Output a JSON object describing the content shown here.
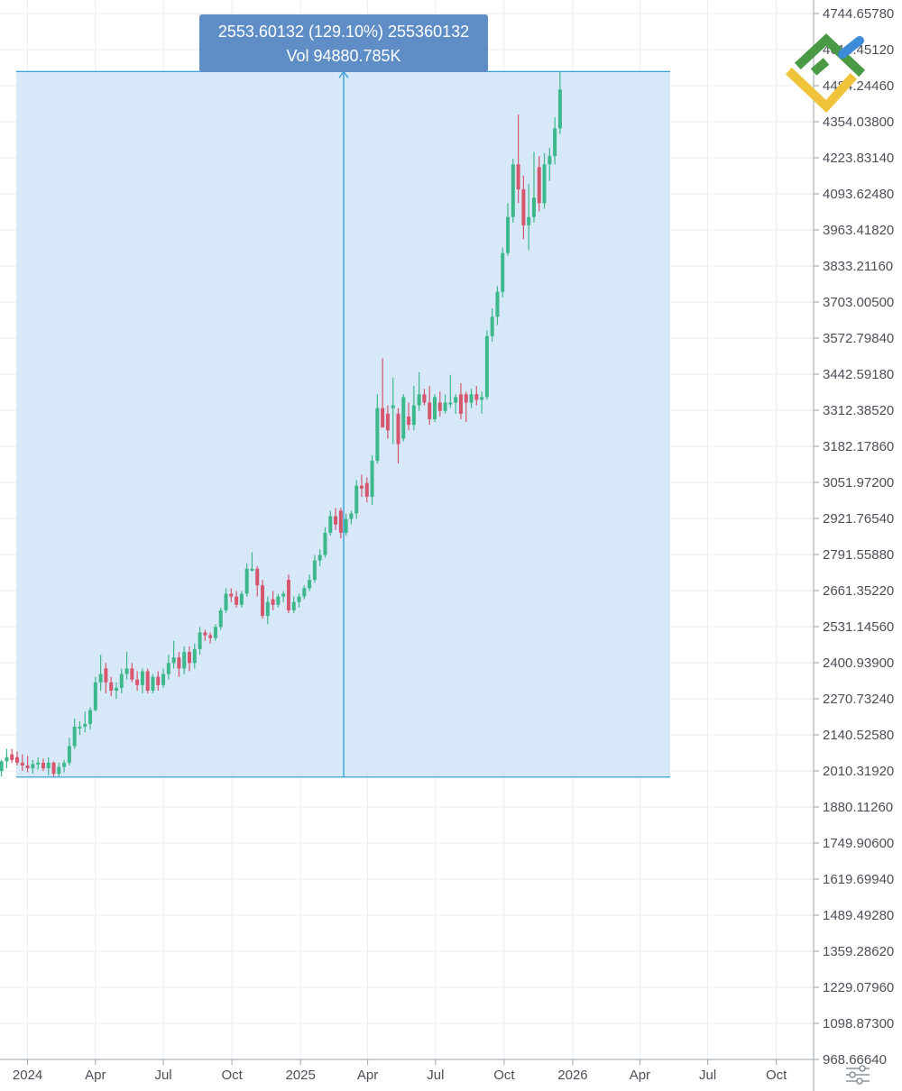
{
  "chart_data": {
    "type": "candlestick",
    "y_axis": {
      "ticks": [
        "4744.65780",
        "4615.45120",
        "4484.24460",
        "4354.03800",
        "4223.83140",
        "4093.62480",
        "3963.41820",
        "3833.21160",
        "3703.00500",
        "3572.79840",
        "3442.59180",
        "3312.38520",
        "3182.17860",
        "3051.97200",
        "2921.76540",
        "2791.55880",
        "2661.35220",
        "2531.14560",
        "2400.93900",
        "2270.73240",
        "2140.52580",
        "2010.31920",
        "1880.11260",
        "1749.90600",
        "1619.69940",
        "1489.49280",
        "1359.28620",
        "1229.07960",
        "1098.87300",
        "968.66640"
      ],
      "range": [
        968.6664,
        4744.6578
      ],
      "side": "right"
    },
    "x_axis": {
      "ticks": [
        "2024",
        "Apr",
        "Jul",
        "Oct",
        "2025",
        "Apr",
        "Jul",
        "Oct",
        "2026",
        "Apr",
        "Jul",
        "Oct"
      ],
      "range": [
        "2023-11-25",
        "2026-11-20"
      ]
    },
    "measure": {
      "label_line1": "2553.60132 (129.10%) 255360132",
      "label_line2": "Vol 94880.785K",
      "start_date": "2024-01-01",
      "end_date": "2025-11-10",
      "low": 1988,
      "high": 4535,
      "fill": "#d3e6f7",
      "stroke": "#3aa0d8"
    },
    "colors": {
      "up": "#3cb88b",
      "down": "#d5566d",
      "grid": "#e8eef3",
      "axis": "#9aa3ad",
      "tooltip": "#5f8ec6"
    },
    "series": [
      {
        "date": "2023-11-27",
        "open": 2010,
        "high": 2050,
        "low": 1990,
        "close": 2045
      },
      {
        "date": "2023-12-04",
        "open": 2045,
        "high": 2090,
        "low": 2020,
        "close": 2060
      },
      {
        "date": "2023-12-11",
        "open": 2070,
        "high": 2090,
        "low": 2040,
        "close": 2050
      },
      {
        "date": "2023-12-18",
        "open": 2060,
        "high": 2080,
        "low": 2030,
        "close": 2040
      },
      {
        "date": "2023-12-25",
        "open": 2040,
        "high": 2070,
        "low": 2010,
        "close": 2030
      },
      {
        "date": "2024-01-01",
        "open": 2030,
        "high": 2065,
        "low": 2005,
        "close": 2020
      },
      {
        "date": "2024-01-08",
        "open": 2020,
        "high": 2050,
        "low": 2000,
        "close": 2035
      },
      {
        "date": "2024-01-15",
        "open": 2035,
        "high": 2060,
        "low": 2015,
        "close": 2040
      },
      {
        "date": "2024-01-22",
        "open": 2040,
        "high": 2055,
        "low": 2010,
        "close": 2020
      },
      {
        "date": "2024-01-29",
        "open": 2020,
        "high": 2060,
        "low": 1995,
        "close": 2040
      },
      {
        "date": "2024-02-05",
        "open": 2040,
        "high": 2045,
        "low": 1990,
        "close": 2000
      },
      {
        "date": "2024-02-12",
        "open": 2000,
        "high": 2040,
        "low": 1990,
        "close": 2025
      },
      {
        "date": "2024-02-19",
        "open": 2025,
        "high": 2050,
        "low": 2005,
        "close": 2040
      },
      {
        "date": "2024-02-26",
        "open": 2040,
        "high": 2130,
        "low": 2030,
        "close": 2100
      },
      {
        "date": "2024-03-04",
        "open": 2100,
        "high": 2200,
        "low": 2090,
        "close": 2170
      },
      {
        "date": "2024-03-11",
        "open": 2170,
        "high": 2190,
        "low": 2140,
        "close": 2170
      },
      {
        "date": "2024-03-18",
        "open": 2170,
        "high": 2225,
        "low": 2150,
        "close": 2180
      },
      {
        "date": "2024-03-25",
        "open": 2180,
        "high": 2240,
        "low": 2160,
        "close": 2230
      },
      {
        "date": "2024-04-01",
        "open": 2230,
        "high": 2350,
        "low": 2225,
        "close": 2330
      },
      {
        "date": "2024-04-08",
        "open": 2330,
        "high": 2430,
        "low": 2300,
        "close": 2360
      },
      {
        "date": "2024-04-15",
        "open": 2380,
        "high": 2400,
        "low": 2290,
        "close": 2330
      },
      {
        "date": "2024-04-22",
        "open": 2330,
        "high": 2350,
        "low": 2280,
        "close": 2300
      },
      {
        "date": "2024-04-29",
        "open": 2300,
        "high": 2330,
        "low": 2270,
        "close": 2310
      },
      {
        "date": "2024-05-06",
        "open": 2310,
        "high": 2380,
        "low": 2290,
        "close": 2360
      },
      {
        "date": "2024-05-13",
        "open": 2360,
        "high": 2440,
        "low": 2340,
        "close": 2380
      },
      {
        "date": "2024-05-20",
        "open": 2380,
        "high": 2400,
        "low": 2330,
        "close": 2340
      },
      {
        "date": "2024-05-27",
        "open": 2340,
        "high": 2370,
        "low": 2300,
        "close": 2320
      },
      {
        "date": "2024-06-03",
        "open": 2320,
        "high": 2380,
        "low": 2290,
        "close": 2370
      },
      {
        "date": "2024-06-10",
        "open": 2370,
        "high": 2380,
        "low": 2290,
        "close": 2300
      },
      {
        "date": "2024-06-17",
        "open": 2300,
        "high": 2360,
        "low": 2290,
        "close": 2350
      },
      {
        "date": "2024-06-24",
        "open": 2350,
        "high": 2370,
        "low": 2300,
        "close": 2320
      },
      {
        "date": "2024-07-01",
        "open": 2320,
        "high": 2380,
        "low": 2310,
        "close": 2360
      },
      {
        "date": "2024-07-08",
        "open": 2360,
        "high": 2430,
        "low": 2340,
        "close": 2400
      },
      {
        "date": "2024-07-15",
        "open": 2400,
        "high": 2480,
        "low": 2380,
        "close": 2420
      },
      {
        "date": "2024-07-22",
        "open": 2420,
        "high": 2440,
        "low": 2350,
        "close": 2380
      },
      {
        "date": "2024-07-29",
        "open": 2380,
        "high": 2460,
        "low": 2360,
        "close": 2440
      },
      {
        "date": "2024-08-05",
        "open": 2440,
        "high": 2460,
        "low": 2370,
        "close": 2400
      },
      {
        "date": "2024-08-12",
        "open": 2400,
        "high": 2470,
        "low": 2380,
        "close": 2450
      },
      {
        "date": "2024-08-19",
        "open": 2450,
        "high": 2530,
        "low": 2430,
        "close": 2510
      },
      {
        "date": "2024-08-26",
        "open": 2510,
        "high": 2520,
        "low": 2480,
        "close": 2500
      },
      {
        "date": "2024-09-02",
        "open": 2500,
        "high": 2510,
        "low": 2470,
        "close": 2490
      },
      {
        "date": "2024-09-09",
        "open": 2490,
        "high": 2540,
        "low": 2480,
        "close": 2530
      },
      {
        "date": "2024-09-16",
        "open": 2530,
        "high": 2600,
        "low": 2520,
        "close": 2590
      },
      {
        "date": "2024-09-23",
        "open": 2590,
        "high": 2670,
        "low": 2580,
        "close": 2650
      },
      {
        "date": "2024-09-30",
        "open": 2650,
        "high": 2670,
        "low": 2620,
        "close": 2640
      },
      {
        "date": "2024-10-07",
        "open": 2640,
        "high": 2660,
        "low": 2600,
        "close": 2610
      },
      {
        "date": "2024-10-14",
        "open": 2610,
        "high": 2660,
        "low": 2600,
        "close": 2650
      },
      {
        "date": "2024-10-21",
        "open": 2650,
        "high": 2760,
        "low": 2640,
        "close": 2740
      },
      {
        "date": "2024-10-28",
        "open": 2740,
        "high": 2800,
        "low": 2730,
        "close": 2740
      },
      {
        "date": "2024-11-04",
        "open": 2740,
        "high": 2750,
        "low": 2640,
        "close": 2680
      },
      {
        "date": "2024-11-11",
        "open": 2680,
        "high": 2700,
        "low": 2560,
        "close": 2570
      },
      {
        "date": "2024-11-18",
        "open": 2570,
        "high": 2640,
        "low": 2540,
        "close": 2620
      },
      {
        "date": "2024-11-25",
        "open": 2630,
        "high": 2660,
        "low": 2590,
        "close": 2610
      },
      {
        "date": "2024-12-02",
        "open": 2610,
        "high": 2650,
        "low": 2600,
        "close": 2640
      },
      {
        "date": "2024-12-09",
        "open": 2640,
        "high": 2660,
        "low": 2620,
        "close": 2650
      },
      {
        "date": "2024-12-16",
        "open": 2700,
        "high": 2720,
        "low": 2580,
        "close": 2590
      },
      {
        "date": "2024-12-23",
        "open": 2590,
        "high": 2640,
        "low": 2580,
        "close": 2620
      },
      {
        "date": "2024-12-30",
        "open": 2620,
        "high": 2650,
        "low": 2600,
        "close": 2640
      },
      {
        "date": "2025-01-06",
        "open": 2640,
        "high": 2680,
        "low": 2630,
        "close": 2670
      },
      {
        "date": "2025-01-13",
        "open": 2670,
        "high": 2720,
        "low": 2660,
        "close": 2700
      },
      {
        "date": "2025-01-20",
        "open": 2700,
        "high": 2790,
        "low": 2690,
        "close": 2770
      },
      {
        "date": "2025-01-27",
        "open": 2770,
        "high": 2810,
        "low": 2750,
        "close": 2790
      },
      {
        "date": "2025-02-03",
        "open": 2790,
        "high": 2890,
        "low": 2780,
        "close": 2870
      },
      {
        "date": "2025-02-10",
        "open": 2870,
        "high": 2950,
        "low": 2860,
        "close": 2930
      },
      {
        "date": "2025-02-17",
        "open": 2930,
        "high": 2960,
        "low": 2880,
        "close": 2900
      },
      {
        "date": "2025-02-24",
        "open": 2950,
        "high": 2960,
        "low": 2850,
        "close": 2870
      },
      {
        "date": "2025-03-03",
        "open": 2870,
        "high": 2940,
        "low": 2860,
        "close": 2920
      },
      {
        "date": "2025-03-10",
        "open": 2920,
        "high": 2950,
        "low": 2900,
        "close": 2940
      },
      {
        "date": "2025-03-17",
        "open": 2940,
        "high": 3060,
        "low": 2920,
        "close": 3040
      },
      {
        "date": "2025-03-24",
        "open": 3040,
        "high": 3080,
        "low": 3000,
        "close": 3030
      },
      {
        "date": "2025-03-31",
        "open": 3050,
        "high": 3070,
        "low": 2980,
        "close": 3000
      },
      {
        "date": "2025-04-07",
        "open": 3000,
        "high": 3150,
        "low": 2970,
        "close": 3130
      },
      {
        "date": "2025-04-14",
        "open": 3130,
        "high": 3370,
        "low": 3120,
        "close": 3320
      },
      {
        "date": "2025-04-21",
        "open": 3320,
        "high": 3500,
        "low": 3250,
        "close": 3250
      },
      {
        "date": "2025-04-28",
        "open": 3300,
        "high": 3330,
        "low": 3210,
        "close": 3240
      },
      {
        "date": "2025-05-05",
        "open": 3320,
        "high": 3430,
        "low": 3190,
        "close": 3330
      },
      {
        "date": "2025-05-12",
        "open": 3300,
        "high": 3320,
        "low": 3120,
        "close": 3190
      },
      {
        "date": "2025-05-19",
        "open": 3210,
        "high": 3370,
        "low": 3200,
        "close": 3360
      },
      {
        "date": "2025-05-26",
        "open": 3290,
        "high": 3340,
        "low": 3240,
        "close": 3260
      },
      {
        "date": "2025-06-02",
        "open": 3260,
        "high": 3400,
        "low": 3240,
        "close": 3330
      },
      {
        "date": "2025-06-09",
        "open": 3330,
        "high": 3450,
        "low": 3310,
        "close": 3370
      },
      {
        "date": "2025-06-16",
        "open": 3370,
        "high": 3390,
        "low": 3330,
        "close": 3340
      },
      {
        "date": "2025-06-23",
        "open": 3340,
        "high": 3400,
        "low": 3260,
        "close": 3280
      },
      {
        "date": "2025-06-30",
        "open": 3280,
        "high": 3370,
        "low": 3270,
        "close": 3360
      },
      {
        "date": "2025-07-07",
        "open": 3340,
        "high": 3380,
        "low": 3290,
        "close": 3310
      },
      {
        "date": "2025-07-14",
        "open": 3310,
        "high": 3370,
        "low": 3300,
        "close": 3340
      },
      {
        "date": "2025-07-21",
        "open": 3340,
        "high": 3440,
        "low": 3320,
        "close": 3340
      },
      {
        "date": "2025-07-28",
        "open": 3340,
        "high": 3370,
        "low": 3300,
        "close": 3360
      },
      {
        "date": "2025-08-04",
        "open": 3370,
        "high": 3410,
        "low": 3280,
        "close": 3300
      },
      {
        "date": "2025-08-11",
        "open": 3370,
        "high": 3380,
        "low": 3270,
        "close": 3340
      },
      {
        "date": "2025-08-18",
        "open": 3340,
        "high": 3390,
        "low": 3320,
        "close": 3370
      },
      {
        "date": "2025-08-25",
        "open": 3370,
        "high": 3400,
        "low": 3330,
        "close": 3350
      },
      {
        "date": "2025-09-01",
        "open": 3350,
        "high": 3380,
        "low": 3300,
        "close": 3360
      },
      {
        "date": "2025-09-08",
        "open": 3360,
        "high": 3600,
        "low": 3350,
        "close": 3580
      },
      {
        "date": "2025-09-15",
        "open": 3580,
        "high": 3680,
        "low": 3560,
        "close": 3650
      },
      {
        "date": "2025-09-22",
        "open": 3650,
        "high": 3760,
        "low": 3620,
        "close": 3740
      },
      {
        "date": "2025-09-29",
        "open": 3740,
        "high": 3900,
        "low": 3720,
        "close": 3880
      },
      {
        "date": "2025-10-06",
        "open": 3880,
        "high": 4060,
        "low": 3870,
        "close": 4010
      },
      {
        "date": "2025-10-13",
        "open": 4010,
        "high": 4220,
        "low": 3990,
        "close": 4200
      },
      {
        "date": "2025-10-20",
        "open": 4200,
        "high": 4380,
        "low": 4060,
        "close": 4110
      },
      {
        "date": "2025-10-27",
        "open": 4110,
        "high": 4160,
        "low": 3930,
        "close": 3980
      },
      {
        "date": "2025-11-03",
        "open": 3980,
        "high": 4130,
        "low": 3890,
        "close": 4010
      },
      {
        "date": "2025-11-10",
        "open": 4010,
        "high": 4245,
        "low": 3990,
        "close": 4080
      },
      {
        "date": "2025-11-17",
        "open": 4190,
        "high": 4230,
        "low": 4030,
        "close": 4060
      },
      {
        "date": "2025-11-24",
        "open": 4060,
        "high": 4240,
        "low": 4040,
        "close": 4200
      },
      {
        "date": "2025-12-01",
        "open": 4200,
        "high": 4260,
        "low": 4140,
        "close": 4230
      },
      {
        "date": "2025-12-08",
        "open": 4230,
        "high": 4370,
        "low": 4200,
        "close": 4330
      },
      {
        "date": "2025-12-15",
        "open": 4330,
        "high": 4535,
        "low": 4310,
        "close": 4470
      }
    ]
  }
}
